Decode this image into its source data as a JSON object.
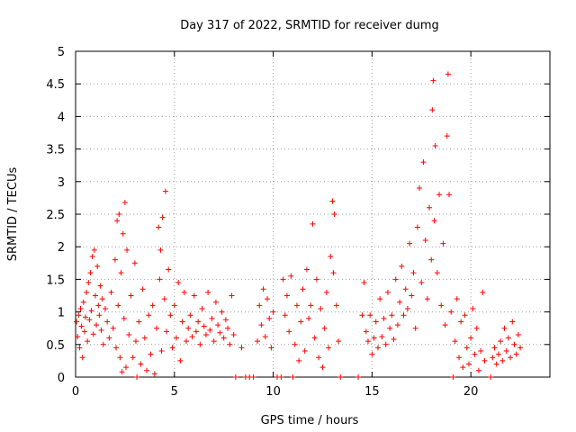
{
  "chart_data": {
    "type": "scatter",
    "title": "Day 317 of 2022, SRMTID for receiver dumg",
    "xlabel": "GPS time / hours",
    "ylabel": "SRMTID / TECUs",
    "xlim": [
      0,
      24
    ],
    "ylim": [
      0,
      5
    ],
    "xticks": [
      0,
      5,
      10,
      15,
      20
    ],
    "yticks": [
      0,
      0.5,
      1,
      1.5,
      2,
      2.5,
      3,
      3.5,
      4,
      4.5,
      5
    ],
    "ytick_labels": [
      "0",
      "0.5",
      "1",
      "1.5",
      "2",
      "2.5",
      "3",
      "3.5",
      "4",
      "4.5",
      "5"
    ],
    "grid": true,
    "marker": "+",
    "series": [
      {
        "name": "SRMTID",
        "color": "#ff0000",
        "points": [
          [
            0.05,
            0.85
          ],
          [
            0.1,
            0.62
          ],
          [
            0.15,
            0.95
          ],
          [
            0.2,
            0.45
          ],
          [
            0.25,
            1.05
          ],
          [
            0.3,
            0.78
          ],
          [
            0.35,
            0.3
          ],
          [
            0.4,
            1.15
          ],
          [
            0.45,
            0.7
          ],
          [
            0.5,
            0.92
          ],
          [
            0.55,
            1.3
          ],
          [
            0.6,
            0.55
          ],
          [
            0.65,
            1.45
          ],
          [
            0.7,
            0.88
          ],
          [
            0.75,
            1.6
          ],
          [
            0.8,
            1.02
          ],
          [
            0.85,
            1.85
          ],
          [
            0.9,
            0.66
          ],
          [
            0.95,
            1.95
          ],
          [
            1.0,
            1.25
          ],
          [
            1.05,
            0.8
          ],
          [
            1.1,
            1.7
          ],
          [
            1.15,
            1.1
          ],
          [
            1.2,
            0.95
          ],
          [
            1.25,
            1.4
          ],
          [
            1.3,
            0.72
          ],
          [
            1.35,
            1.2
          ],
          [
            1.4,
            0.5
          ],
          [
            1.5,
            1.05
          ],
          [
            1.6,
            0.85
          ],
          [
            1.7,
            0.6
          ],
          [
            1.8,
            1.3
          ],
          [
            1.9,
            0.75
          ],
          [
            2.0,
            1.8
          ],
          [
            2.05,
            0.45
          ],
          [
            2.1,
            2.4
          ],
          [
            2.15,
            1.1
          ],
          [
            2.2,
            2.5
          ],
          [
            2.25,
            0.3
          ],
          [
            2.3,
            1.6
          ],
          [
            2.35,
            0.08
          ],
          [
            2.4,
            2.2
          ],
          [
            2.45,
            0.9
          ],
          [
            2.5,
            2.68
          ],
          [
            2.55,
            0.15
          ],
          [
            2.6,
            1.95
          ],
          [
            2.7,
            0.65
          ],
          [
            2.8,
            1.25
          ],
          [
            2.9,
            0.3
          ],
          [
            3.0,
            1.75
          ],
          [
            3.05,
            0.55
          ],
          [
            3.1,
            0.0
          ],
          [
            3.2,
            0.85
          ],
          [
            3.3,
            0.2
          ],
          [
            3.4,
            1.35
          ],
          [
            3.5,
            0.6
          ],
          [
            3.6,
            0.1
          ],
          [
            3.7,
            0.95
          ],
          [
            3.8,
            0.35
          ],
          [
            3.9,
            1.1
          ],
          [
            4.0,
            0.05
          ],
          [
            4.1,
            0.75
          ],
          [
            4.2,
            2.3
          ],
          [
            4.25,
            1.5
          ],
          [
            4.3,
            1.95
          ],
          [
            4.35,
            0.4
          ],
          [
            4.4,
            2.45
          ],
          [
            4.5,
            1.2
          ],
          [
            4.55,
            2.85
          ],
          [
            4.6,
            0.7
          ],
          [
            4.7,
            1.65
          ],
          [
            4.8,
            0.95
          ],
          [
            4.9,
            0.45
          ],
          [
            5.0,
            1.1
          ],
          [
            5.1,
            0.6
          ],
          [
            5.2,
            1.45
          ],
          [
            5.3,
            0.25
          ],
          [
            5.4,
            0.85
          ],
          [
            5.5,
            1.3
          ],
          [
            5.6,
            0.55
          ],
          [
            5.7,
            0.75
          ],
          [
            5.8,
            0.95
          ],
          [
            5.9,
            0.62
          ],
          [
            6.0,
            1.25
          ],
          [
            6.1,
            0.7
          ],
          [
            6.2,
            0.85
          ],
          [
            6.3,
            0.5
          ],
          [
            6.4,
            1.05
          ],
          [
            6.5,
            0.78
          ],
          [
            6.6,
            0.65
          ],
          [
            6.7,
            1.3
          ],
          [
            6.8,
            0.72
          ],
          [
            6.9,
            0.9
          ],
          [
            7.0,
            0.55
          ],
          [
            7.1,
            1.15
          ],
          [
            7.2,
            0.8
          ],
          [
            7.3,
            0.68
          ],
          [
            7.4,
            1.0
          ],
          [
            7.5,
            0.6
          ],
          [
            7.6,
            0.88
          ],
          [
            7.7,
            0.75
          ],
          [
            7.8,
            0.5
          ],
          [
            7.9,
            1.25
          ],
          [
            8.0,
            0.65
          ],
          [
            8.1,
            0.0
          ],
          [
            8.4,
            0.45
          ],
          [
            8.6,
            0.0
          ],
          [
            8.8,
            0.0
          ],
          [
            9.0,
            0.0
          ],
          [
            9.2,
            0.55
          ],
          [
            9.3,
            1.1
          ],
          [
            9.4,
            0.8
          ],
          [
            9.5,
            1.35
          ],
          [
            9.6,
            0.62
          ],
          [
            9.7,
            1.2
          ],
          [
            9.8,
            0.9
          ],
          [
            9.9,
            0.45
          ],
          [
            10.0,
            1.0
          ],
          [
            10.2,
            0.0
          ],
          [
            10.4,
            0.0
          ],
          [
            10.5,
            1.5
          ],
          [
            10.6,
            0.95
          ],
          [
            10.7,
            1.25
          ],
          [
            10.8,
            0.7
          ],
          [
            10.9,
            1.55
          ],
          [
            11.0,
            0.0
          ],
          [
            11.1,
            0.5
          ],
          [
            11.2,
            1.1
          ],
          [
            11.3,
            0.25
          ],
          [
            11.4,
            0.85
          ],
          [
            11.5,
            1.35
          ],
          [
            11.6,
            0.4
          ],
          [
            11.7,
            1.65
          ],
          [
            11.8,
            0.9
          ],
          [
            11.9,
            1.1
          ],
          [
            12.0,
            2.35
          ],
          [
            12.1,
            0.6
          ],
          [
            12.2,
            1.5
          ],
          [
            12.3,
            0.3
          ],
          [
            12.4,
            1.05
          ],
          [
            12.5,
            0.15
          ],
          [
            12.6,
            0.75
          ],
          [
            12.7,
            1.3
          ],
          [
            12.8,
            0.45
          ],
          [
            12.9,
            1.85
          ],
          [
            13.0,
            2.7
          ],
          [
            13.05,
            1.6
          ],
          [
            13.1,
            2.5
          ],
          [
            13.2,
            1.1
          ],
          [
            13.3,
            0.55
          ],
          [
            13.4,
            0.0
          ],
          [
            14.3,
            0.0
          ],
          [
            14.5,
            0.95
          ],
          [
            14.6,
            1.45
          ],
          [
            14.7,
            0.7
          ],
          [
            14.8,
            0.55
          ],
          [
            14.9,
            0.95
          ],
          [
            15.0,
            0.35
          ],
          [
            15.1,
            0.6
          ],
          [
            15.2,
            0.85
          ],
          [
            15.3,
            0.45
          ],
          [
            15.4,
            1.2
          ],
          [
            15.5,
            0.62
          ],
          [
            15.6,
            0.9
          ],
          [
            15.7,
            0.5
          ],
          [
            15.8,
            1.3
          ],
          [
            15.9,
            0.75
          ],
          [
            16.0,
            0.95
          ],
          [
            16.1,
            0.58
          ],
          [
            16.2,
            1.5
          ],
          [
            16.3,
            0.8
          ],
          [
            16.4,
            1.15
          ],
          [
            16.5,
            1.7
          ],
          [
            16.6,
            0.95
          ],
          [
            16.7,
            1.35
          ],
          [
            16.8,
            1.05
          ],
          [
            16.9,
            2.05
          ],
          [
            17.0,
            1.25
          ],
          [
            17.1,
            1.6
          ],
          [
            17.2,
            0.75
          ],
          [
            17.3,
            2.3
          ],
          [
            17.4,
            2.9
          ],
          [
            17.5,
            1.45
          ],
          [
            17.6,
            3.3
          ],
          [
            17.7,
            2.1
          ],
          [
            17.8,
            1.2
          ],
          [
            17.9,
            2.6
          ],
          [
            18.0,
            1.8
          ],
          [
            18.05,
            4.1
          ],
          [
            18.1,
            4.55
          ],
          [
            18.15,
            2.4
          ],
          [
            18.2,
            3.55
          ],
          [
            18.3,
            1.6
          ],
          [
            18.4,
            2.8
          ],
          [
            18.5,
            1.1
          ],
          [
            18.6,
            2.05
          ],
          [
            18.7,
            0.8
          ],
          [
            18.8,
            3.7
          ],
          [
            18.85,
            4.65
          ],
          [
            18.9,
            2.8
          ],
          [
            19.0,
            1.0
          ],
          [
            19.1,
            0.0
          ],
          [
            19.2,
            0.55
          ],
          [
            19.3,
            1.2
          ],
          [
            19.4,
            0.3
          ],
          [
            19.5,
            0.85
          ],
          [
            19.6,
            0.15
          ],
          [
            19.7,
            0.95
          ],
          [
            19.8,
            0.45
          ],
          [
            19.9,
            0.2
          ],
          [
            20.0,
            0.6
          ],
          [
            20.1,
            1.05
          ],
          [
            20.2,
            0.35
          ],
          [
            20.3,
            0.75
          ],
          [
            20.4,
            0.1
          ],
          [
            20.5,
            0.4
          ],
          [
            20.6,
            1.3
          ],
          [
            20.7,
            0.25
          ],
          [
            21.0,
            0.0
          ],
          [
            21.1,
            0.3
          ],
          [
            21.2,
            0.45
          ],
          [
            21.3,
            0.2
          ],
          [
            21.4,
            0.35
          ],
          [
            21.5,
            0.55
          ],
          [
            21.6,
            0.25
          ],
          [
            21.7,
            0.75
          ],
          [
            21.8,
            0.4
          ],
          [
            21.9,
            0.6
          ],
          [
            22.0,
            0.3
          ],
          [
            22.1,
            0.85
          ],
          [
            22.2,
            0.5
          ],
          [
            22.3,
            0.35
          ],
          [
            22.4,
            0.65
          ],
          [
            22.5,
            0.45
          ]
        ]
      }
    ]
  }
}
